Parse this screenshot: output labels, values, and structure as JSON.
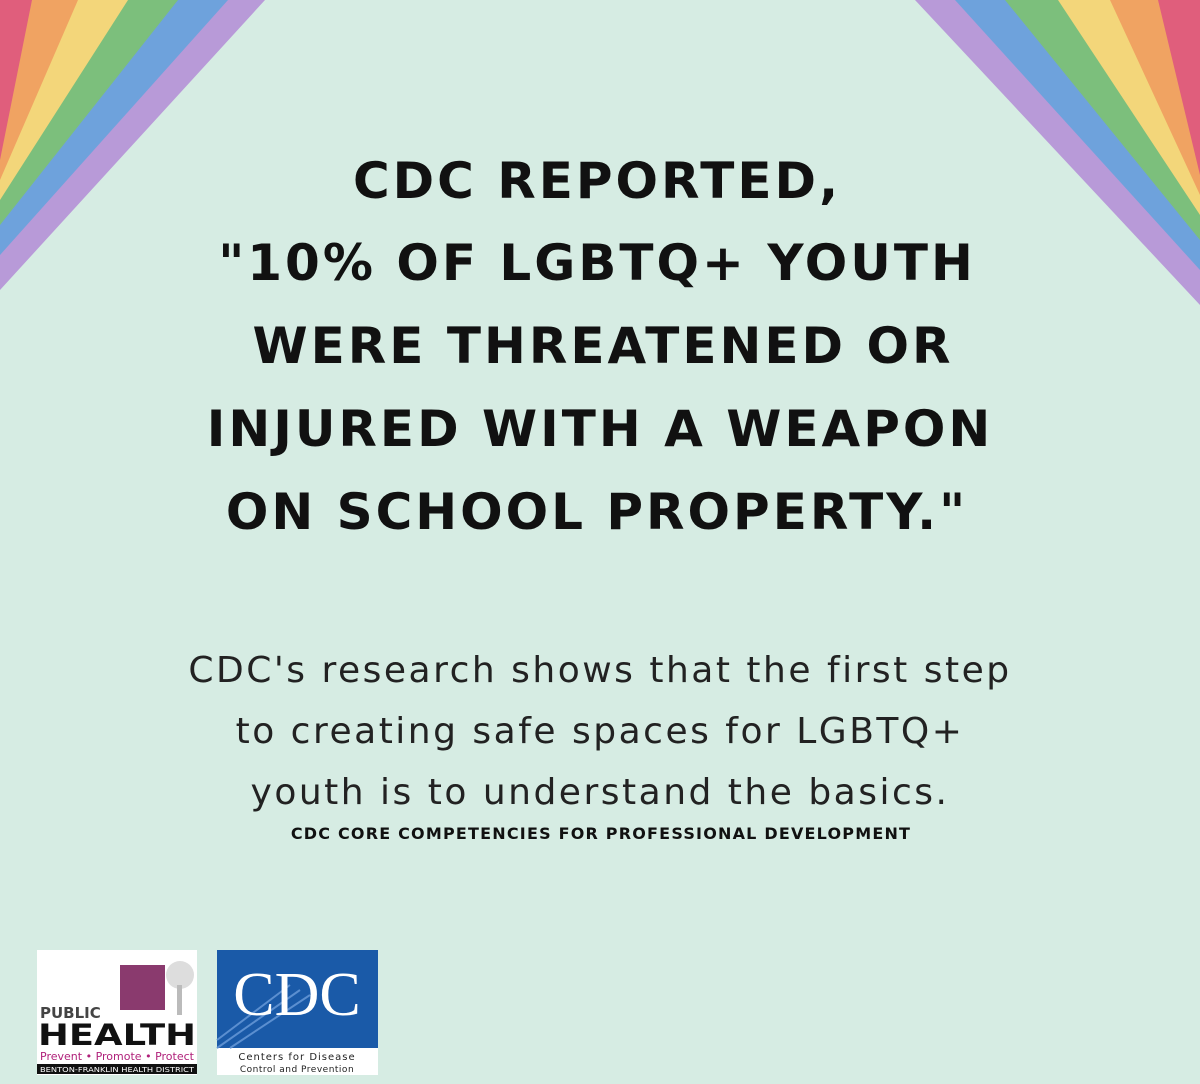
{
  "headline": {
    "lines": [
      "CDC REPORTED,",
      "\"10% OF LGBTQ+ YOUTH",
      "WERE THREATENED OR",
      "INJURED WITH A WEAPON",
      "ON SCHOOL PROPERTY.\""
    ]
  },
  "body": {
    "lines": [
      "CDC's research shows that the first step",
      "to creating safe spaces for LGBTQ+",
      "youth is to understand the basics."
    ]
  },
  "source": "CDC CORE COMPETENCIES FOR PROFESSIONAL DEVELOPMENT",
  "logos": {
    "public_health": {
      "top": "PUBLIC",
      "main": "HEALTH",
      "tagline": "Prevent • Promote • Protect",
      "district": "BENTON-FRANKLIN HEALTH DISTRICT"
    },
    "cdc": {
      "mark": "CDC",
      "line1": "Centers for Disease",
      "line2": "Control and Prevention"
    }
  }
}
